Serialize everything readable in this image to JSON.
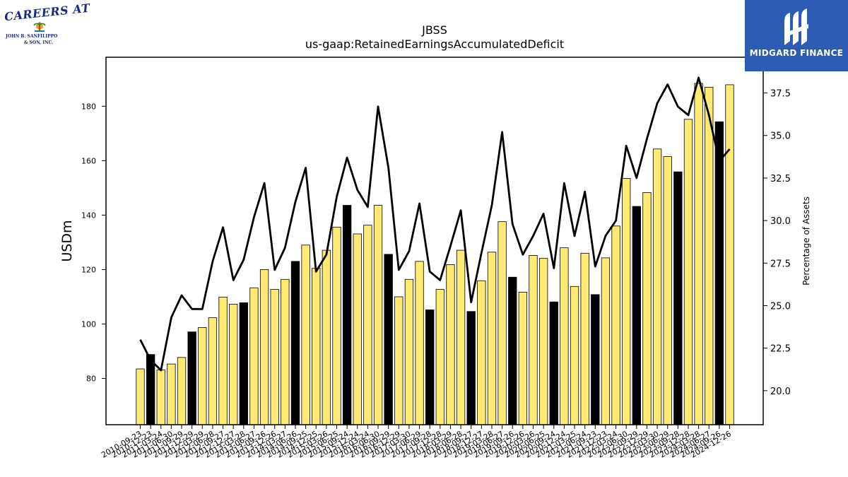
{
  "chart_data": {
    "type": "bar",
    "title": "JBSS",
    "subtitle": "us-gaap:RetainedEarningsAccumulatedDeficit",
    "ylabel": "USDm",
    "y2label": "Percentage of Assets",
    "ylim": [
      63,
      198
    ],
    "y2lim": [
      18,
      39.6
    ],
    "yticks": [
      80,
      100,
      120,
      140,
      160,
      180
    ],
    "y2ticks": [
      "20.0",
      "22.5",
      "25.0",
      "27.5",
      "30.0",
      "32.5",
      "35.0",
      "37.5"
    ],
    "bar_colors": {
      "quarter": "#fde974",
      "fiscal_year_end": "#000000"
    },
    "line_color": "#000000",
    "categories": [
      "2010-09-23",
      "2010-12-23",
      "2011-03-24",
      "2011-06-30",
      "2011-09-29",
      "2011-12-29",
      "2012-03-29",
      "2012-06-28",
      "2012-09-27",
      "2012-12-27",
      "2013-03-28",
      "2013-06-27",
      "2013-09-26",
      "2013-12-26",
      "2014-03-27",
      "2014-06-26",
      "2014-09-25",
      "2014-12-25",
      "2015-03-26",
      "2015-06-25",
      "2015-09-24",
      "2015-12-24",
      "2016-03-24",
      "2016-06-30",
      "2016-09-29",
      "2016-12-29",
      "2017-03-30",
      "2017-06-29",
      "2017-09-28",
      "2017-12-28",
      "2018-03-29",
      "2018-06-28",
      "2018-09-27",
      "2018-12-27",
      "2019-03-28",
      "2019-06-27",
      "2019-09-26",
      "2019-12-26",
      "2020-03-26",
      "2020-06-25",
      "2020-09-24",
      "2020-12-24",
      "2021-03-25",
      "2021-06-24",
      "2021-09-23",
      "2021-12-23",
      "2022-03-24",
      "2022-06-30",
      "2022-09-29",
      "2022-12-29",
      "2023-03-30",
      "2023-06-29",
      "2023-09-28",
      "2023-12-28",
      "2024-03-28",
      "2024-06-27",
      "2024-09-26",
      "2024-12-26"
    ],
    "x_tick_labels": [
      "2010-09-23",
      "2010-12-23",
      "2011-03-24",
      "2011-06-30",
      "2011-09-29",
      "2011-12-29",
      "2012-03-29",
      "2012-06-28",
      "2012-09-27",
      "2012-12-27",
      "2013-03-28",
      "2013-06-27",
      "2013-09-26",
      "2013-12-26",
      "2014-03-27",
      "2014-06-26",
      "2014-09-25",
      "2014-12-25",
      "2015-03-26",
      "2015-06-25",
      "2015-09-24",
      "2015-12-24",
      "2016-03-24",
      "2016-06-30",
      "2016-09-29",
      "2016-12-29",
      "2017-03-30",
      "2017-06-29",
      "2017-09-28",
      "2017-12-28",
      "2018-03-29",
      "2018-06-28",
      "2018-09-27",
      "2018-12-27",
      "2019-03-28",
      "2019-06-27",
      "2019-09-26",
      "2019-12-26",
      "2020-03-26",
      "2020-06-25",
      "2020-09-24",
      "2020-12-24",
      "2021-03-25",
      "2021-06-24",
      "2021-09-23",
      "2021-12-23",
      "2022-03-24",
      "2022-06-30",
      "2022-09-29",
      "2022-12-29",
      "2023-03-30",
      "2023-06-29",
      "2023-09-28",
      "2023-12-28",
      "2024-03-28",
      "2024-06-27",
      "2024-09-26",
      "2024-12-26"
    ],
    "fiscal_year_end_flags": [
      false,
      true,
      false,
      false,
      false,
      true,
      false,
      false,
      false,
      false,
      true,
      false,
      false,
      false,
      false,
      true,
      false,
      false,
      false,
      false,
      true,
      false,
      false,
      false,
      true,
      false,
      false,
      false,
      true,
      false,
      false,
      false,
      true,
      false,
      false,
      false,
      true,
      false,
      false,
      false,
      true,
      false,
      false,
      false,
      true,
      false,
      false,
      false,
      true,
      false,
      false,
      false,
      true,
      false,
      false,
      false,
      true,
      false
    ],
    "series": [
      {
        "kind": "bar",
        "axis": "left",
        "values": [
          83.5,
          88.8,
          83.1,
          85.3,
          87.7,
          97.1,
          98.7,
          102.3,
          109.9,
          107.3,
          107.8,
          113.3,
          120.0,
          112.7,
          116.4,
          123.0,
          129.0,
          120.5,
          127.1,
          135.6,
          143.6,
          133.1,
          136.3,
          143.6,
          125.6,
          110.0,
          116.4,
          123.0,
          105.2,
          112.7,
          121.8,
          127.1,
          104.6,
          115.9,
          126.4,
          137.6,
          117.2,
          111.7,
          125.2,
          124.1,
          108.1,
          128.0,
          113.8,
          126.0,
          110.8,
          124.3,
          136.0,
          153.5,
          143.2,
          148.3,
          164.3,
          161.5,
          155.9,
          175.2,
          188.4,
          187.0,
          174.3,
          187.9
        ]
      },
      {
        "kind": "line",
        "axis": "right",
        "values": [
          23.0,
          21.8,
          21.2,
          24.3,
          25.6,
          24.8,
          24.8,
          27.6,
          29.6,
          26.5,
          27.7,
          30.2,
          32.2,
          27.1,
          28.4,
          31.1,
          33.1,
          27.0,
          28.0,
          31.4,
          33.7,
          31.8,
          30.8,
          36.7,
          33.1,
          27.1,
          28.2,
          31.0,
          27.0,
          26.5,
          28.5,
          30.6,
          25.2,
          28.1,
          30.9,
          35.2,
          29.8,
          28.0,
          29.1,
          30.4,
          27.2,
          32.2,
          29.1,
          31.7,
          27.3,
          29.1,
          30.0,
          34.4,
          32.5,
          34.8,
          36.9,
          38.0,
          36.7,
          36.2,
          38.4,
          36.2,
          33.5,
          34.2
        ]
      }
    ],
    "legend": "none",
    "grid": false
  },
  "logos": {
    "left": {
      "line1": "CAREERS AT",
      "line2": "JOHN B. SANFILIPPO",
      "line3": "& SON, INC."
    },
    "right": {
      "name": "MIDGARD FINANCE"
    }
  }
}
